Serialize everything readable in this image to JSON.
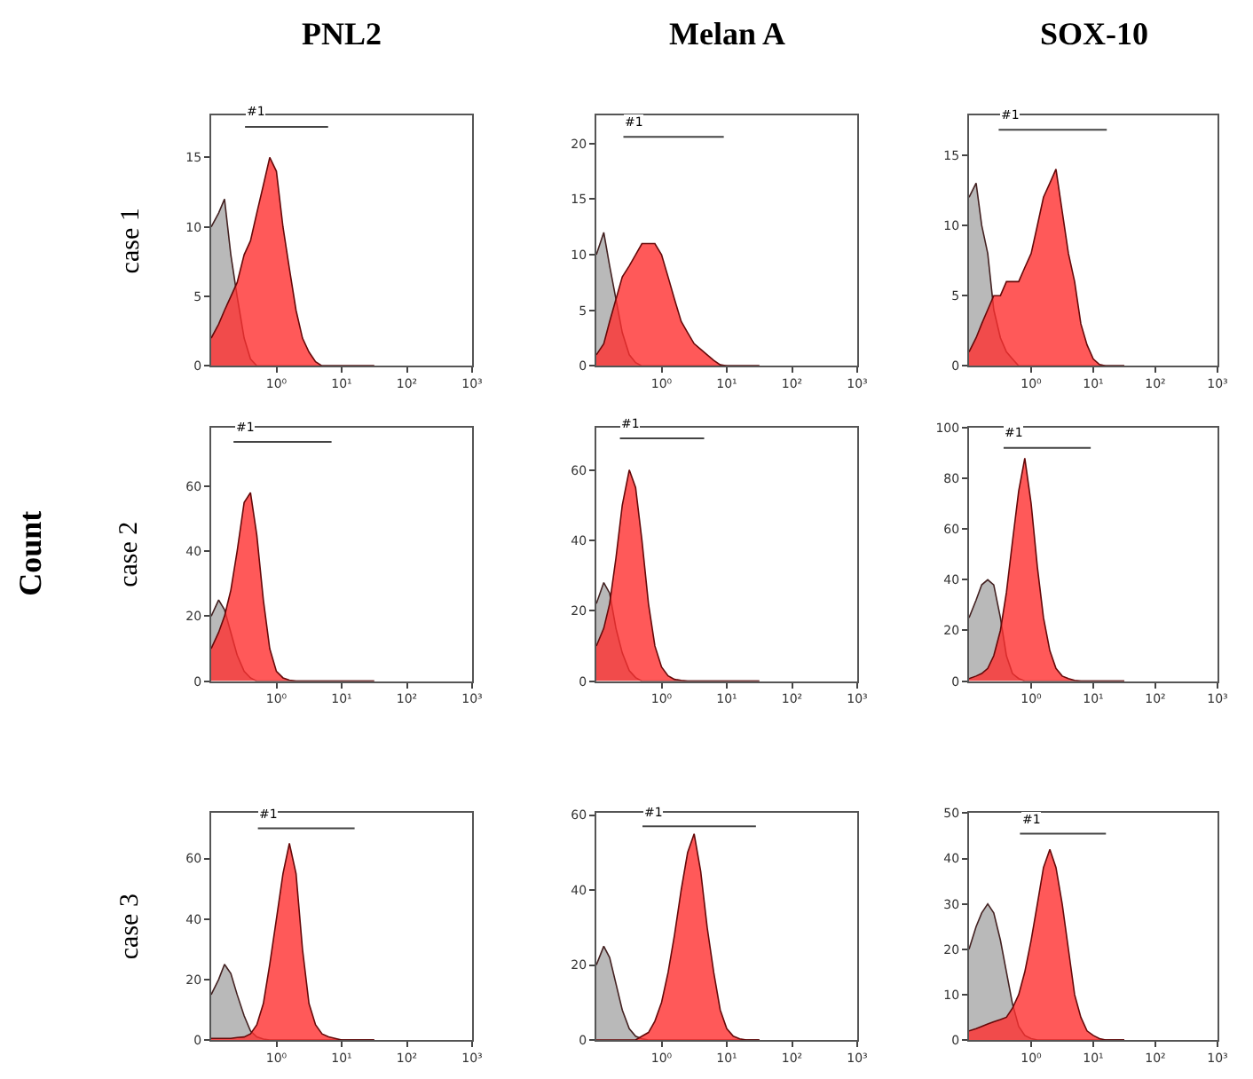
{
  "chart_data": [
    {
      "type": "area",
      "title": "PNL2",
      "ylabel": "case 1",
      "x": [
        0.1,
        0.13,
        0.16,
        0.2,
        0.25,
        0.32,
        0.4,
        0.5,
        0.63,
        0.79,
        1,
        1.26,
        1.58,
        2,
        2.51,
        3.16,
        3.98,
        5.01,
        6.31,
        7.94,
        10,
        12.6,
        15.8,
        20,
        25.1,
        31.6
      ],
      "series": [
        {
          "color": "#a8a8a8",
          "values": [
            10,
            11,
            12,
            8,
            5,
            2,
            0.5,
            0,
            0,
            0,
            0,
            0,
            0,
            0,
            0,
            0,
            0,
            0,
            0,
            0,
            0,
            0,
            0,
            0,
            0,
            0
          ]
        },
        {
          "color": "#ff3030",
          "values": [
            2,
            3,
            4,
            5,
            6,
            8,
            9,
            11,
            13,
            15,
            14,
            10,
            7,
            4,
            2,
            1,
            0.3,
            0,
            0,
            0,
            0,
            0,
            0,
            0,
            0,
            0
          ]
        },
        {
          "type": "line",
          "name": "#1",
          "color": "#444444",
          "x": [
            0.33,
            6.2
          ],
          "values": [
            17.2,
            17.2
          ]
        }
      ],
      "xlim": [
        0.1,
        1000
      ],
      "xticks": [
        {
          "value": 1,
          "label": "10⁰"
        },
        {
          "value": 10,
          "label": "10¹"
        },
        {
          "value": 100,
          "label": "10²"
        },
        {
          "value": 1000,
          "label": "10³"
        }
      ],
      "ylim": [
        0,
        18
      ],
      "yticks": [
        0,
        5,
        10,
        15
      ],
      "log": "x"
    },
    {
      "type": "area",
      "title": "Melan A",
      "x": [
        0.1,
        0.13,
        0.16,
        0.2,
        0.25,
        0.32,
        0.4,
        0.5,
        0.63,
        0.79,
        1,
        1.26,
        1.58,
        2,
        2.51,
        3.16,
        3.98,
        5.01,
        6.31,
        7.94,
        10,
        12.6,
        15.8,
        20,
        25.1,
        31.6
      ],
      "series": [
        {
          "color": "#a8a8a8",
          "values": [
            10,
            12,
            9,
            6,
            3,
            1,
            0.3,
            0,
            0,
            0,
            0,
            0,
            0,
            0,
            0,
            0,
            0,
            0,
            0,
            0,
            0,
            0,
            0,
            0,
            0,
            0
          ]
        },
        {
          "color": "#ff3030",
          "values": [
            1,
            2,
            4,
            6,
            8,
            9,
            10,
            11,
            11,
            11,
            10,
            8,
            6,
            4,
            3,
            2,
            1.5,
            1,
            0.5,
            0.1,
            0,
            0,
            0,
            0,
            0,
            0
          ]
        },
        {
          "type": "line",
          "name": "#1",
          "color": "#444444",
          "x": [
            0.26,
            9
          ],
          "values": [
            20.6,
            20.6
          ]
        }
      ],
      "xlim": [
        0.1,
        1000
      ],
      "xticks": [
        {
          "value": 1,
          "label": "10⁰"
        },
        {
          "value": 10,
          "label": "10¹"
        },
        {
          "value": 100,
          "label": "10²"
        },
        {
          "value": 1000,
          "label": "10³"
        }
      ],
      "ylim": [
        0,
        22.5
      ],
      "yticks": [
        0,
        5,
        10,
        15,
        20
      ],
      "log": "x"
    },
    {
      "type": "area",
      "title": "SOX-10",
      "x": [
        0.1,
        0.13,
        0.16,
        0.2,
        0.25,
        0.32,
        0.4,
        0.5,
        0.63,
        0.79,
        1,
        1.26,
        1.58,
        2,
        2.51,
        3.16,
        3.98,
        5.01,
        6.31,
        7.94,
        10,
        12.6,
        15.8,
        20,
        25.1,
        31.6
      ],
      "series": [
        {
          "color": "#a8a8a8",
          "values": [
            12,
            13,
            10,
            8,
            4,
            2,
            1,
            0.5,
            0,
            0,
            0,
            0,
            0,
            0,
            0,
            0,
            0,
            0,
            0,
            0,
            0,
            0,
            0,
            0,
            0,
            0
          ]
        },
        {
          "color": "#ff3030",
          "values": [
            1,
            2,
            3,
            4,
            5,
            5,
            6,
            6,
            6,
            7,
            8,
            10,
            12,
            13,
            14,
            11,
            8,
            6,
            3,
            1.5,
            0.5,
            0.1,
            0,
            0,
            0,
            0
          ]
        },
        {
          "type": "line",
          "name": "#1",
          "color": "#444444",
          "x": [
            0.3,
            16.5
          ],
          "values": [
            16.8,
            16.8
          ]
        }
      ],
      "xlim": [
        0.1,
        1000
      ],
      "xticks": [
        {
          "value": 1,
          "label": "10⁰"
        },
        {
          "value": 10,
          "label": "10¹"
        },
        {
          "value": 100,
          "label": "10²"
        },
        {
          "value": 1000,
          "label": "10³"
        }
      ],
      "ylim": [
        0,
        17.8
      ],
      "yticks": [
        0,
        5,
        10,
        15
      ],
      "log": "x"
    },
    {
      "type": "area",
      "ylabel": "case 2",
      "annotations": [
        "Count"
      ],
      "x": [
        0.1,
        0.13,
        0.16,
        0.2,
        0.25,
        0.32,
        0.4,
        0.5,
        0.63,
        0.79,
        1,
        1.26,
        1.58,
        2,
        2.51,
        3.16,
        3.98,
        5.01,
        6.31,
        7.94,
        10,
        12.6,
        15.8,
        20,
        25.1,
        31.6
      ],
      "series": [
        {
          "color": "#a8a8a8",
          "values": [
            20,
            25,
            22,
            15,
            8,
            3,
            1,
            0,
            0,
            0,
            0,
            0,
            0,
            0,
            0,
            0,
            0,
            0,
            0,
            0,
            0,
            0,
            0,
            0,
            0,
            0
          ]
        },
        {
          "color": "#ff3030",
          "values": [
            10,
            15,
            20,
            28,
            40,
            55,
            58,
            45,
            25,
            10,
            3,
            1,
            0.3,
            0,
            0,
            0,
            0,
            0,
            0,
            0,
            0,
            0,
            0,
            0,
            0,
            0
          ]
        },
        {
          "type": "line",
          "name": "#1",
          "color": "#444444",
          "x": [
            0.22,
            7
          ],
          "values": [
            73.6,
            73.6
          ]
        }
      ],
      "xlim": [
        0.1,
        1000
      ],
      "xticks": [
        {
          "value": 1,
          "label": "10⁰"
        },
        {
          "value": 10,
          "label": "10¹"
        },
        {
          "value": 100,
          "label": "10²"
        },
        {
          "value": 1000,
          "label": "10³"
        }
      ],
      "ylim": [
        0,
        78
      ],
      "yticks": [
        0,
        20,
        40,
        60
      ],
      "log": "x"
    },
    {
      "type": "area",
      "x": [
        0.1,
        0.13,
        0.16,
        0.2,
        0.25,
        0.32,
        0.4,
        0.5,
        0.63,
        0.79,
        1,
        1.26,
        1.58,
        2,
        2.51,
        3.16,
        3.98,
        5.01,
        6.31,
        7.94,
        10,
        12.6,
        15.8,
        20,
        25.1,
        31.6
      ],
      "series": [
        {
          "color": "#a8a8a8",
          "values": [
            22,
            28,
            25,
            15,
            8,
            3,
            1,
            0,
            0,
            0,
            0,
            0,
            0,
            0,
            0,
            0,
            0,
            0,
            0,
            0,
            0,
            0,
            0,
            0,
            0,
            0
          ]
        },
        {
          "color": "#ff3030",
          "values": [
            10,
            15,
            22,
            35,
            50,
            60,
            55,
            40,
            22,
            10,
            4,
            1.5,
            0.5,
            0.2,
            0,
            0,
            0,
            0,
            0,
            0,
            0,
            0,
            0,
            0,
            0,
            0
          ]
        },
        {
          "type": "line",
          "name": "#1",
          "color": "#444444",
          "x": [
            0.23,
            4.5
          ],
          "values": [
            69,
            69
          ]
        }
      ],
      "xlim": [
        0.1,
        1000
      ],
      "xticks": [
        {
          "value": 1,
          "label": "10⁰"
        },
        {
          "value": 10,
          "label": "10¹"
        },
        {
          "value": 100,
          "label": "10²"
        },
        {
          "value": 1000,
          "label": "10³"
        }
      ],
      "ylim": [
        0,
        72
      ],
      "yticks": [
        0,
        20,
        40,
        60
      ],
      "log": "x"
    },
    {
      "type": "area",
      "x": [
        0.1,
        0.13,
        0.16,
        0.2,
        0.25,
        0.32,
        0.4,
        0.5,
        0.63,
        0.79,
        1,
        1.26,
        1.58,
        2,
        2.51,
        3.16,
        3.98,
        5.01,
        6.31,
        7.94,
        10,
        12.6,
        15.8,
        20,
        25.1,
        31.6
      ],
      "series": [
        {
          "color": "#a8a8a8",
          "values": [
            25,
            32,
            38,
            40,
            38,
            25,
            10,
            3,
            1,
            0,
            0,
            0,
            0,
            0,
            0,
            0,
            0,
            0,
            0,
            0,
            0,
            0,
            0,
            0,
            0,
            0
          ]
        },
        {
          "color": "#ff3030",
          "values": [
            1,
            2,
            3,
            5,
            10,
            20,
            35,
            55,
            75,
            88,
            70,
            45,
            25,
            12,
            5,
            2,
            1,
            0.3,
            0,
            0,
            0,
            0,
            0,
            0,
            0,
            0
          ]
        },
        {
          "type": "line",
          "name": "#1",
          "color": "#444444",
          "x": [
            0.36,
            9.1
          ],
          "values": [
            92,
            92
          ]
        }
      ],
      "xlim": [
        0.1,
        1000
      ],
      "xticks": [
        {
          "value": 1,
          "label": "10⁰"
        },
        {
          "value": 10,
          "label": "10¹"
        },
        {
          "value": 100,
          "label": "10²"
        },
        {
          "value": 1000,
          "label": "10³"
        }
      ],
      "ylim": [
        0,
        100
      ],
      "yticks": [
        0,
        20,
        40,
        60,
        80,
        100
      ],
      "log": "x"
    },
    {
      "type": "area",
      "ylabel": "case 3",
      "x": [
        0.1,
        0.13,
        0.16,
        0.2,
        0.25,
        0.32,
        0.4,
        0.5,
        0.63,
        0.79,
        1,
        1.26,
        1.58,
        2,
        2.51,
        3.16,
        3.98,
        5.01,
        6.31,
        7.94,
        10,
        12.6,
        15.8,
        20,
        25.1,
        31.6
      ],
      "series": [
        {
          "color": "#a8a8a8",
          "values": [
            15,
            20,
            25,
            22,
            15,
            8,
            3,
            1,
            0.3,
            0,
            0,
            0,
            0,
            0,
            0,
            0,
            0,
            0,
            0,
            0,
            0,
            0,
            0,
            0,
            0,
            0
          ]
        },
        {
          "color": "#ff3030",
          "values": [
            0.5,
            0.5,
            0.5,
            0.5,
            0.8,
            1,
            2,
            5,
            12,
            25,
            40,
            55,
            65,
            55,
            30,
            12,
            5,
            2,
            1,
            0.5,
            0,
            0,
            0,
            0,
            0,
            0
          ]
        },
        {
          "type": "line",
          "name": "#1",
          "color": "#444444",
          "x": [
            0.52,
            15.8
          ],
          "values": [
            70,
            70
          ]
        }
      ],
      "xlim": [
        0.1,
        1000
      ],
      "xticks": [
        {
          "value": 1,
          "label": "10⁰"
        },
        {
          "value": 10,
          "label": "10¹"
        },
        {
          "value": 100,
          "label": "10²"
        },
        {
          "value": 1000,
          "label": "10³"
        }
      ],
      "ylim": [
        0,
        75
      ],
      "yticks": [
        0,
        20,
        40,
        60
      ],
      "log": "x"
    },
    {
      "type": "area",
      "x": [
        0.1,
        0.13,
        0.16,
        0.2,
        0.25,
        0.32,
        0.4,
        0.5,
        0.63,
        0.79,
        1,
        1.26,
        1.58,
        2,
        2.51,
        3.16,
        3.98,
        5.01,
        6.31,
        7.94,
        10,
        12.6,
        15.8,
        20,
        25.1,
        31.6
      ],
      "series": [
        {
          "color": "#a8a8a8",
          "values": [
            20,
            25,
            22,
            15,
            8,
            3,
            1,
            0.3,
            0,
            0,
            0,
            0,
            0,
            0,
            0,
            0,
            0,
            0,
            0,
            0,
            0,
            0,
            0,
            0,
            0,
            0
          ]
        },
        {
          "color": "#ff3030",
          "values": [
            0,
            0,
            0,
            0,
            0,
            0,
            0,
            1,
            2,
            5,
            10,
            18,
            28,
            40,
            50,
            55,
            45,
            30,
            18,
            8,
            3,
            1,
            0.3,
            0,
            0,
            0
          ]
        },
        {
          "type": "line",
          "name": "#1",
          "color": "#444444",
          "x": [
            0.51,
            28
          ],
          "values": [
            57,
            57
          ]
        }
      ],
      "xlim": [
        0.1,
        1000
      ],
      "xticks": [
        {
          "value": 1,
          "label": "10⁰"
        },
        {
          "value": 10,
          "label": "10¹"
        },
        {
          "value": 100,
          "label": "10²"
        },
        {
          "value": 1000,
          "label": "10³"
        }
      ],
      "ylim": [
        0,
        60.5
      ],
      "yticks": [
        0,
        20,
        40,
        60
      ],
      "log": "x"
    },
    {
      "type": "area",
      "x": [
        0.1,
        0.13,
        0.16,
        0.2,
        0.25,
        0.32,
        0.4,
        0.5,
        0.63,
        0.79,
        1,
        1.26,
        1.58,
        2,
        2.51,
        3.16,
        3.98,
        5.01,
        6.31,
        7.94,
        10,
        12.6,
        15.8,
        20,
        25.1,
        31.6
      ],
      "series": [
        {
          "color": "#a8a8a8",
          "values": [
            20,
            25,
            28,
            30,
            28,
            22,
            15,
            8,
            3,
            1,
            0.3,
            0,
            0,
            0,
            0,
            0,
            0,
            0,
            0,
            0,
            0,
            0,
            0,
            0,
            0,
            0
          ]
        },
        {
          "color": "#ff3030",
          "values": [
            2,
            2.5,
            3,
            3.5,
            4,
            4.5,
            5,
            7,
            10,
            15,
            22,
            30,
            38,
            42,
            38,
            30,
            20,
            10,
            5,
            2,
            1,
            0.3,
            0,
            0,
            0,
            0
          ]
        },
        {
          "type": "line",
          "name": "#1",
          "color": "#444444",
          "x": [
            0.66,
            16
          ],
          "values": [
            45.5,
            45.5
          ]
        }
      ],
      "xlim": [
        0.1,
        1000
      ],
      "xticks": [
        {
          "value": 1,
          "label": "10⁰"
        },
        {
          "value": 10,
          "label": "10¹"
        },
        {
          "value": 100,
          "label": "10²"
        },
        {
          "value": 1000,
          "label": "10³"
        }
      ],
      "ylim": [
        0,
        50
      ],
      "yticks": [
        0,
        10,
        20,
        30,
        40,
        50
      ],
      "log": "x"
    }
  ]
}
